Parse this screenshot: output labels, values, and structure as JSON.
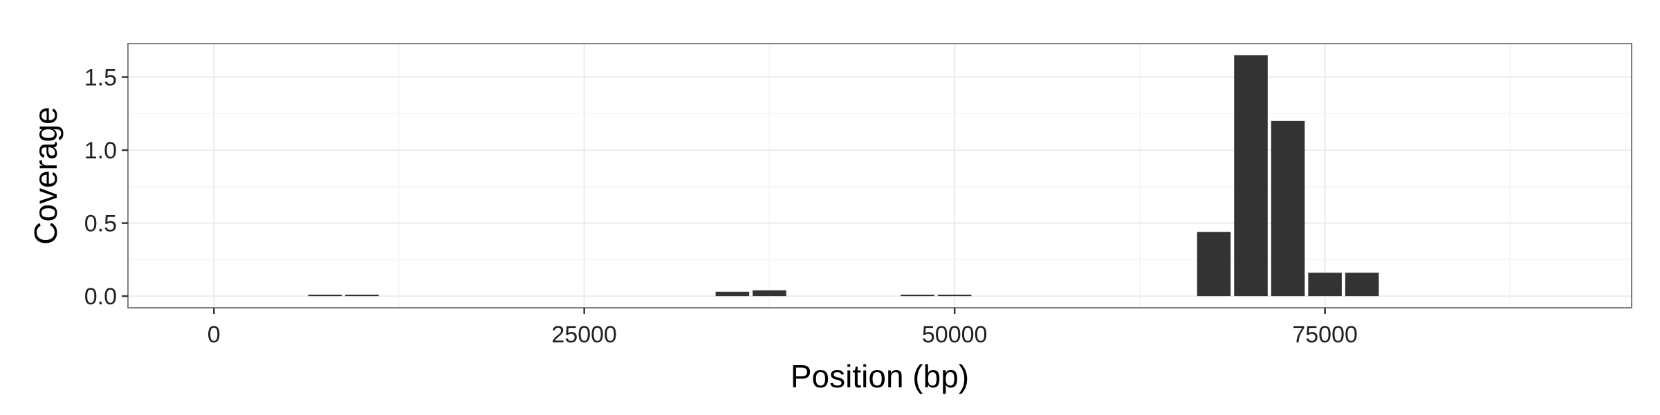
{
  "chart_data": {
    "type": "bar",
    "title": "",
    "xlabel": "Position (bp)",
    "ylabel": "Coverage",
    "xlim": [
      -5800,
      95700
    ],
    "ylim": [
      -0.08,
      1.73
    ],
    "x_ticks": [
      0,
      25000,
      50000,
      75000
    ],
    "x_tick_labels": [
      "0",
      "25000",
      "50000",
      "75000"
    ],
    "y_ticks": [
      0.0,
      0.5,
      1.0,
      1.5
    ],
    "y_tick_labels": [
      "0.0",
      "0.5",
      "1.0",
      "1.5"
    ],
    "bin_width": 2500,
    "x": [
      7500,
      10000,
      35000,
      37500,
      47500,
      50000,
      67500,
      70000,
      72500,
      75000,
      77500
    ],
    "values": [
      0.01,
      0.01,
      0.03,
      0.04,
      0.01,
      0.01,
      0.44,
      1.65,
      1.2,
      0.16,
      0.16
    ],
    "grid": true,
    "bar_color": "#333333",
    "panel_border_color": "#7f7f7f",
    "grid_color": "#ebebeb",
    "grid_minor_color": "#f4f4f4"
  }
}
